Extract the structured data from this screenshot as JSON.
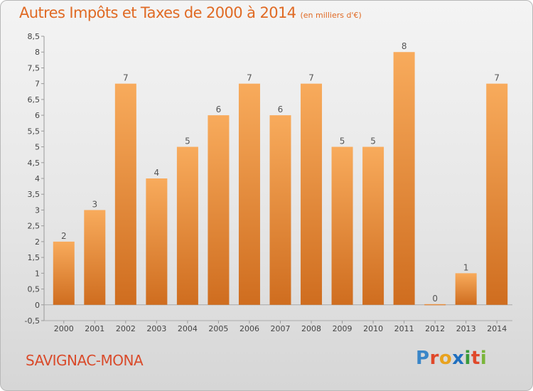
{
  "header": {
    "title": "Autres Impôts et Taxes de 2000 à 2014",
    "subtitle": "(en milliers d'€)"
  },
  "footer": {
    "place": "SAVIGNAC-MONA",
    "logo": "Proxiti"
  },
  "colors": {
    "bar_top": "#f8ab5c",
    "bar_bottom": "#cf6d1f",
    "title": "#e06a24"
  },
  "chart_data": {
    "type": "bar",
    "title": "Autres Impôts et Taxes de 2000 à 2014",
    "subtitle": "(en milliers d'€)",
    "categories": [
      "2000",
      "2001",
      "2002",
      "2003",
      "2004",
      "2005",
      "2006",
      "2007",
      "2008",
      "2009",
      "2010",
      "2011",
      "2012",
      "2013",
      "2014"
    ],
    "values": [
      2,
      3,
      7,
      4,
      5,
      6,
      7,
      6,
      7,
      5,
      5,
      8,
      0,
      1,
      7
    ],
    "labels": [
      "2",
      "3",
      "7",
      "4",
      "5",
      "6",
      "7",
      "6",
      "7",
      "5",
      "5",
      "8",
      "0",
      "1",
      "7"
    ],
    "ylim": [
      -0.5,
      8.5
    ],
    "yticks": [
      "-0,5",
      "0",
      "0,5",
      "1",
      "1,5",
      "2",
      "2,5",
      "3",
      "3,5",
      "4",
      "4,5",
      "5",
      "5,5",
      "6",
      "6,5",
      "7",
      "7,5",
      "8",
      "8,5"
    ],
    "grid": false,
    "legend": "none"
  }
}
